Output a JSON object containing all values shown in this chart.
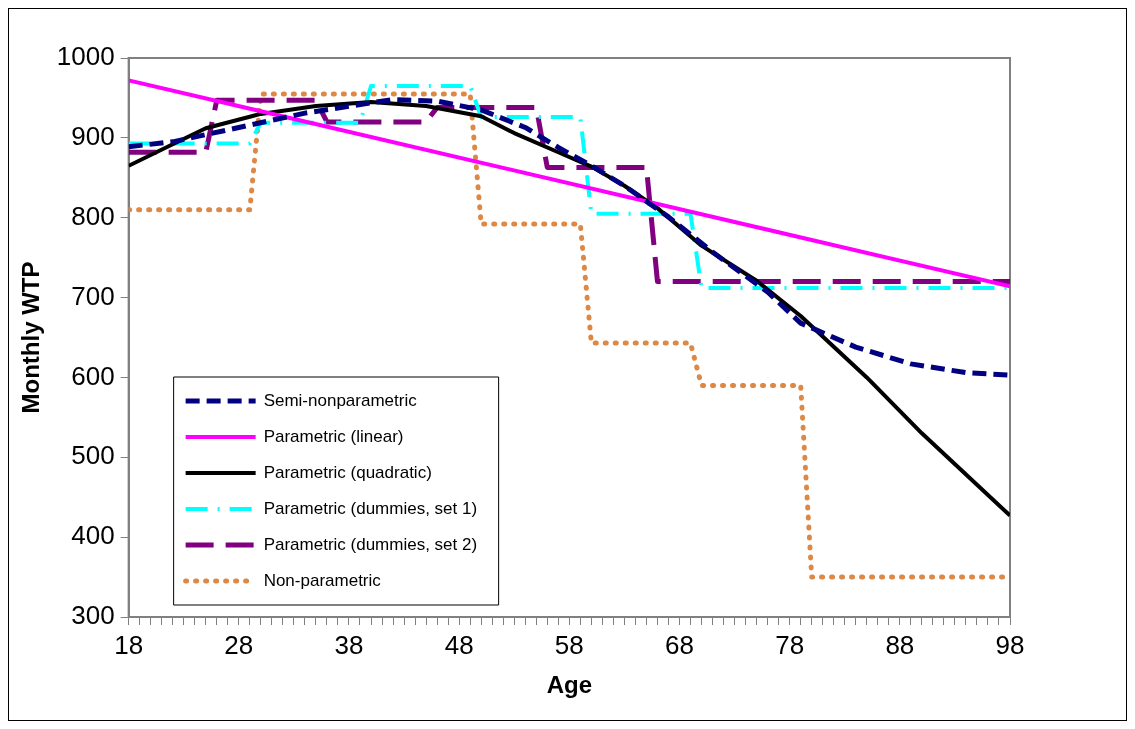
{
  "chart_data": {
    "type": "line",
    "xlabel": "Age",
    "ylabel": "Monthly WTP",
    "xlim": [
      18,
      98
    ],
    "ylim": [
      300,
      1000
    ],
    "yticks": [
      300,
      400,
      500,
      600,
      700,
      800,
      900,
      1000
    ],
    "xticks": [
      18,
      {
        "value": 19,
        "label": null
      },
      {
        "value": 20,
        "label": null
      },
      {
        "value": 21,
        "label": null
      },
      {
        "value": 22,
        "label": null
      },
      {
        "value": 23,
        "label": null
      },
      {
        "value": 24,
        "label": null
      },
      {
        "value": 25,
        "label": null
      },
      {
        "value": 26,
        "label": null
      },
      {
        "value": 27,
        "label": null
      },
      28,
      {
        "value": 29,
        "label": null
      },
      {
        "value": 30,
        "label": null
      },
      {
        "value": 31,
        "label": null
      },
      {
        "value": 32,
        "label": null
      },
      {
        "value": 33,
        "label": null
      },
      {
        "value": 34,
        "label": null
      },
      {
        "value": 35,
        "label": null
      },
      {
        "value": 36,
        "label": null
      },
      {
        "value": 37,
        "label": null
      },
      38,
      {
        "value": 39,
        "label": null
      },
      {
        "value": 40,
        "label": null
      },
      {
        "value": 41,
        "label": null
      },
      {
        "value": 42,
        "label": null
      },
      {
        "value": 43,
        "label": null
      },
      {
        "value": 44,
        "label": null
      },
      {
        "value": 45,
        "label": null
      },
      {
        "value": 46,
        "label": null
      },
      {
        "value": 47,
        "label": null
      },
      48,
      {
        "value": 49,
        "label": null
      },
      {
        "value": 50,
        "label": null
      },
      {
        "value": 51,
        "label": null
      },
      {
        "value": 52,
        "label": null
      },
      {
        "value": 53,
        "label": null
      },
      {
        "value": 54,
        "label": null
      },
      {
        "value": 55,
        "label": null
      },
      {
        "value": 56,
        "label": null
      },
      {
        "value": 57,
        "label": null
      },
      58,
      {
        "value": 59,
        "label": null
      },
      {
        "value": 60,
        "label": null
      },
      {
        "value": 61,
        "label": null
      },
      {
        "value": 62,
        "label": null
      },
      {
        "value": 63,
        "label": null
      },
      {
        "value": 64,
        "label": null
      },
      {
        "value": 65,
        "label": null
      },
      {
        "value": 66,
        "label": null
      },
      {
        "value": 67,
        "label": null
      },
      68,
      {
        "value": 69,
        "label": null
      },
      {
        "value": 70,
        "label": null
      },
      {
        "value": 71,
        "label": null
      },
      {
        "value": 72,
        "label": null
      },
      {
        "value": 73,
        "label": null
      },
      {
        "value": 74,
        "label": null
      },
      {
        "value": 75,
        "label": null
      },
      {
        "value": 76,
        "label": null
      },
      {
        "value": 77,
        "label": null
      },
      78,
      {
        "value": 79,
        "label": null
      },
      {
        "value": 80,
        "label": null
      },
      {
        "value": 81,
        "label": null
      },
      {
        "value": 82,
        "label": null
      },
      {
        "value": 83,
        "label": null
      },
      {
        "value": 84,
        "label": null
      },
      {
        "value": 85,
        "label": null
      },
      {
        "value": 86,
        "label": null
      },
      {
        "value": 87,
        "label": null
      },
      88,
      {
        "value": 89,
        "label": null
      },
      {
        "value": 90,
        "label": null
      },
      {
        "value": 91,
        "label": null
      },
      {
        "value": 92,
        "label": null
      },
      {
        "value": 93,
        "label": null
      },
      {
        "value": 94,
        "label": null
      },
      {
        "value": 95,
        "label": null
      },
      {
        "value": 96,
        "label": null
      },
      {
        "value": 97,
        "label": null
      },
      98
    ],
    "grid": false,
    "legend": "bottom left",
    "marker": "none",
    "series": [
      {
        "name": "Semi-nonparametric",
        "color": "#000080",
        "line_style": "dashed",
        "x": [
          18,
          22,
          27,
          34,
          42,
          46,
          50,
          54,
          57,
          60,
          63,
          67,
          71,
          76,
          79,
          84,
          89,
          94,
          98
        ],
        "values": [
          889,
          895,
          910,
          931,
          948,
          946,
          935,
          913,
          888,
          865,
          840,
          801,
          757,
          707,
          668,
          638,
          617,
          606,
          603
        ]
      },
      {
        "name": "Parametric (linear)",
        "color": "#ff00ff",
        "line_style": "solid",
        "x": [
          18,
          98
        ],
        "values": [
          972,
          714
        ]
      },
      {
        "name": "Parametric (quadratic)",
        "color": "#000000",
        "line_style": "solid",
        "x": [
          18,
          22,
          25,
          30,
          35,
          40,
          45,
          50,
          53,
          57,
          60,
          63,
          66,
          70,
          75,
          79,
          85,
          90,
          98
        ],
        "values": [
          865,
          892,
          912,
          930,
          940,
          945,
          940,
          927,
          906,
          882,
          864,
          840,
          812,
          765,
          721,
          677,
          600,
          530,
          427
        ]
      },
      {
        "name": "Parametric (dummies, set 1)",
        "color": "#00ffff",
        "line_style": "dashdot",
        "x": [
          18,
          29,
          30,
          39,
          40,
          49,
          50,
          59,
          60,
          69,
          70,
          98
        ],
        "values": [
          893,
          893,
          919,
          919,
          965,
          965,
          926,
          926,
          805,
          805,
          712,
          712
        ]
      },
      {
        "name": "Parametric (dummies, set 2)",
        "color": "#800080",
        "line_style": "longdash",
        "x": [
          18,
          25,
          26,
          35,
          36,
          45,
          46,
          55,
          56,
          65,
          66,
          98
        ],
        "values": [
          882,
          882,
          947,
          947,
          920,
          920,
          938,
          938,
          863,
          863,
          720,
          720
        ]
      },
      {
        "name": "Non-parametric",
        "color": "#dd8844",
        "line_style": "dotted",
        "x": [
          18,
          29,
          30,
          49,
          50,
          59,
          60,
          69,
          70,
          79,
          80,
          98
        ],
        "values": [
          810,
          810,
          955,
          955,
          792,
          792,
          643,
          643,
          590,
          590,
          350,
          350
        ]
      }
    ]
  }
}
